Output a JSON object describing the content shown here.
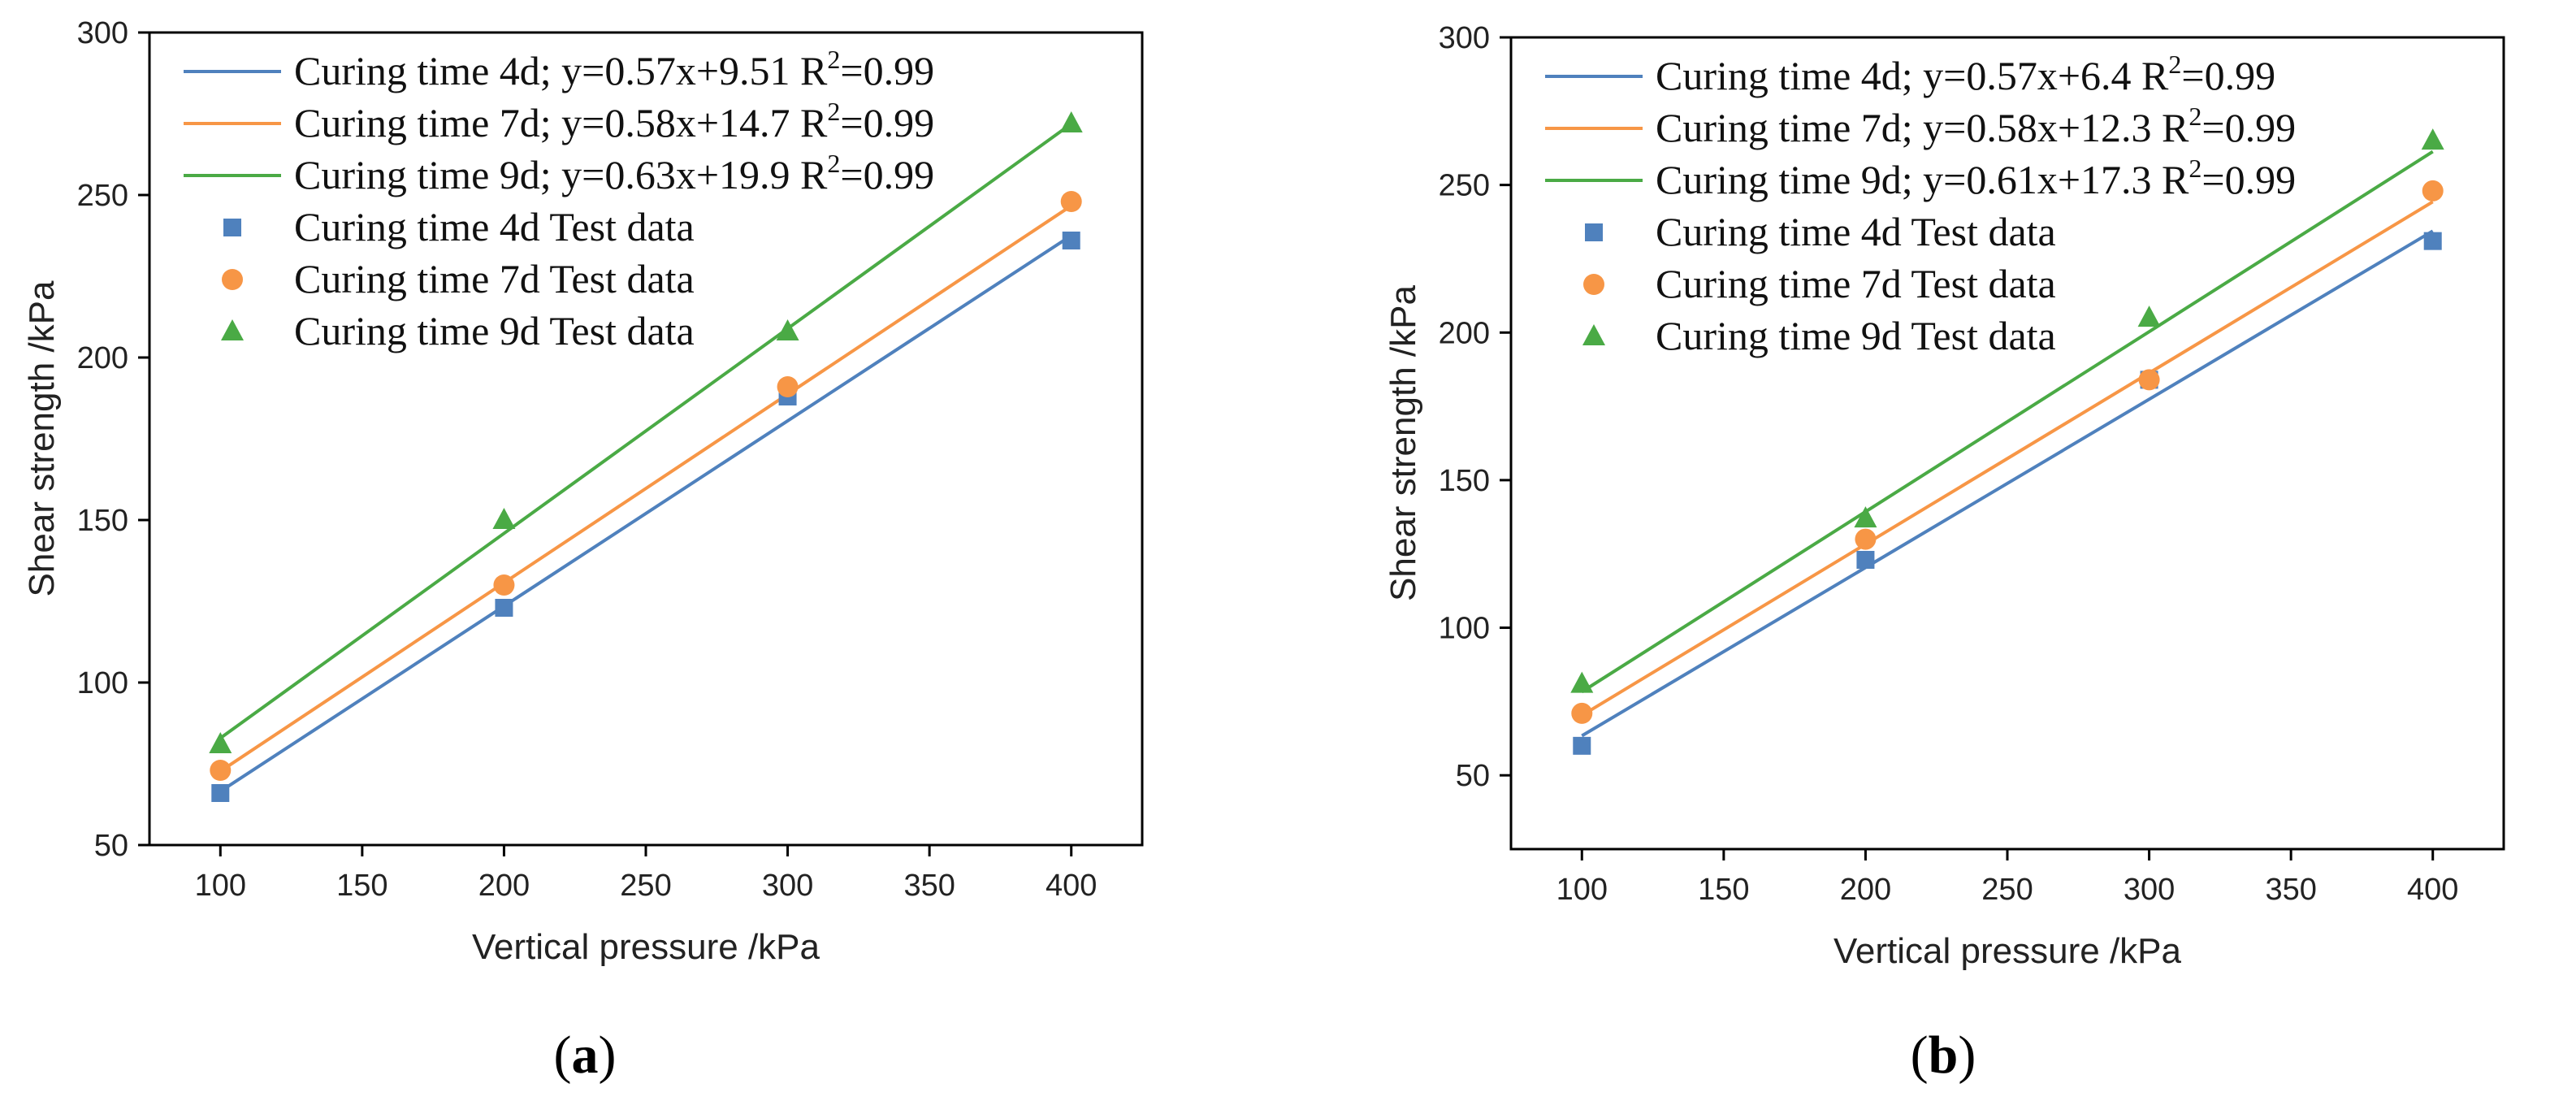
{
  "chart_data": [
    {
      "type": "scatter",
      "panel": "a",
      "caption_open": "(",
      "caption_letter": "a",
      "caption_close": ")",
      "xlabel": "Vertical pressure /kPa",
      "ylabel": "Shear strength /kPa",
      "xlim": [
        75,
        425
      ],
      "ylim": [
        50,
        300
      ],
      "xticks": [
        100,
        150,
        200,
        250,
        300,
        350,
        400
      ],
      "yticks": [
        50,
        100,
        150,
        200,
        250,
        300
      ],
      "x": [
        100,
        200,
        300,
        400
      ],
      "fits": [
        {
          "name": "Curing time 4d",
          "label": "Curing time 4d;  y=0.57x+9.51  R",
          "sup": "2",
          "tail": "=0.99",
          "slope": 0.57,
          "intercept": 9.51,
          "color": "#4f81bd"
        },
        {
          "name": "Curing time 7d",
          "label": "Curing time 7d; y=0.58x+14.7  R",
          "sup": "2",
          "tail": "=0.99",
          "slope": 0.58,
          "intercept": 14.7,
          "color": "#f79646"
        },
        {
          "name": "Curing time 9d",
          "label": "Curing time 9d; y=0.63x+19.9  R",
          "sup": "2",
          "tail": "=0.99",
          "slope": 0.63,
          "intercept": 19.9,
          "color": "#4aaa45"
        }
      ],
      "series": [
        {
          "name": "Curing time 4d Test data",
          "marker": "square",
          "color": "#4f81bd",
          "values": [
            66,
            123,
            188,
            236
          ]
        },
        {
          "name": "Curing time 7d Test data",
          "marker": "circle",
          "color": "#f79646",
          "values": [
            73,
            130,
            191,
            248
          ]
        },
        {
          "name": "Curing time 9d Test data",
          "marker": "triangle",
          "color": "#4aaa45",
          "values": [
            81,
            150,
            208,
            272
          ]
        }
      ]
    },
    {
      "type": "scatter",
      "panel": "b",
      "caption_open": "(",
      "caption_letter": "b",
      "caption_close": ")",
      "xlabel": "Vertical pressure /kPa",
      "ylabel": "Shear strength /kPa",
      "xlim": [
        75,
        425
      ],
      "ylim": [
        25,
        300
      ],
      "xticks": [
        100,
        150,
        200,
        250,
        300,
        350,
        400
      ],
      "yticks": [
        50,
        100,
        150,
        200,
        250,
        300
      ],
      "x": [
        100,
        200,
        300,
        400
      ],
      "fits": [
        {
          "name": "Curing time 4d",
          "label": "Curing time 4d; y=0.57x+6.4    R",
          "sup": "2",
          "tail": "=0.99",
          "slope": 0.57,
          "intercept": 6.4,
          "color": "#4f81bd"
        },
        {
          "name": "Curing time 7d",
          "label": "Curing time 7d; y=0.58x+12.3  R",
          "sup": "2",
          "tail": "=0.99",
          "slope": 0.58,
          "intercept": 12.3,
          "color": "#f79646"
        },
        {
          "name": "Curing time 9d",
          "label": "Curing time 9d; y=0.61x+17.3  R",
          "sup": "2",
          "tail": "=0.99",
          "slope": 0.61,
          "intercept": 17.3,
          "color": "#4aaa45"
        }
      ],
      "series": [
        {
          "name": "Curing time 4d Test data",
          "marker": "square",
          "color": "#4f81bd",
          "values": [
            60,
            123,
            184,
            231
          ]
        },
        {
          "name": "Curing time 7d Test data",
          "marker": "circle",
          "color": "#f79646",
          "values": [
            71,
            130,
            184,
            248
          ]
        },
        {
          "name": "Curing time 9d Test data",
          "marker": "triangle",
          "color": "#4aaa45",
          "values": [
            81,
            137,
            205,
            265
          ]
        }
      ]
    }
  ]
}
